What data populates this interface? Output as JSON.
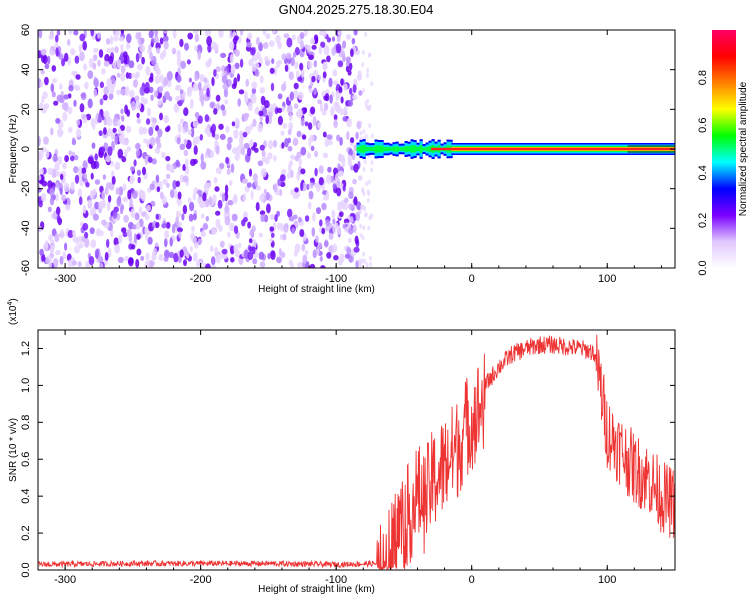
{
  "title": "GN04.2025.275.18.30.E04",
  "chart_data": [
    {
      "type": "heatmap",
      "xlabel": "Height of straight line (km)",
      "ylabel": "Frequency (Hz)",
      "xlim": [
        -320,
        150
      ],
      "ylim": [
        -60,
        60
      ],
      "x_ticks": [
        -300,
        -200,
        -100,
        0,
        100
      ],
      "y_ticks": [
        -60,
        -40,
        -20,
        0,
        20,
        40,
        60
      ],
      "noise_region_x": [
        -320,
        -82
      ],
      "signal_band_x": [
        -85,
        150
      ],
      "signal_center_hz": 0,
      "colorbar": {
        "label": "Normalized spectral amplitude",
        "range": [
          0,
          1
        ],
        "ticks": [
          0.0,
          0.2,
          0.4,
          0.6,
          0.8
        ],
        "tick_labels": [
          "0.0",
          "0.2",
          "0.4",
          "0.6",
          "0.8"
        ],
        "colors": [
          "#ffffff",
          "#e0c8ff",
          "#7a00ff",
          "#0000ff",
          "#00ffff",
          "#00ff00",
          "#ffff00",
          "#ff8000",
          "#ff0000",
          "#ff0066"
        ]
      }
    },
    {
      "type": "line",
      "xlabel": "Height of straight line (km)",
      "ylabel": "SNR (10 * v/v)",
      "y_multiplier_base": "(x10",
      "y_multiplier_exp": "4",
      "y_multiplier_close": ")",
      "xlim": [
        -320,
        150
      ],
      "ylim": [
        0,
        1.3
      ],
      "x_ticks": [
        -300,
        -200,
        -100,
        0,
        100
      ],
      "y_ticks": [
        0.0,
        0.2,
        0.4,
        0.6,
        0.8,
        1.0,
        1.2
      ],
      "y_tick_labels": [
        "0.0",
        "0.2",
        "0.4",
        "0.6",
        "0.8",
        "1.0",
        "1.2"
      ],
      "line_color": "#ee3333",
      "series": [
        {
          "x": [
            -320,
            -250,
            -200,
            -150,
            -100,
            -70,
            -60,
            -55,
            -50,
            -45,
            -40,
            -35,
            -30,
            -25,
            -20,
            -15,
            -10,
            -5,
            0,
            10,
            20,
            30,
            40,
            50,
            60,
            70,
            80,
            90,
            95,
            100,
            110,
            120,
            130,
            140,
            150
          ],
          "y": [
            0.03,
            0.035,
            0.035,
            0.035,
            0.03,
            0.035,
            0.15,
            0.3,
            0.35,
            0.4,
            0.5,
            0.45,
            0.55,
            0.6,
            0.65,
            0.7,
            0.75,
            0.85,
            0.9,
            1.0,
            1.1,
            1.17,
            1.2,
            1.22,
            1.22,
            1.21,
            1.2,
            1.18,
            1.0,
            0.75,
            0.65,
            0.55,
            0.5,
            0.4,
            0.35
          ]
        }
      ]
    }
  ]
}
